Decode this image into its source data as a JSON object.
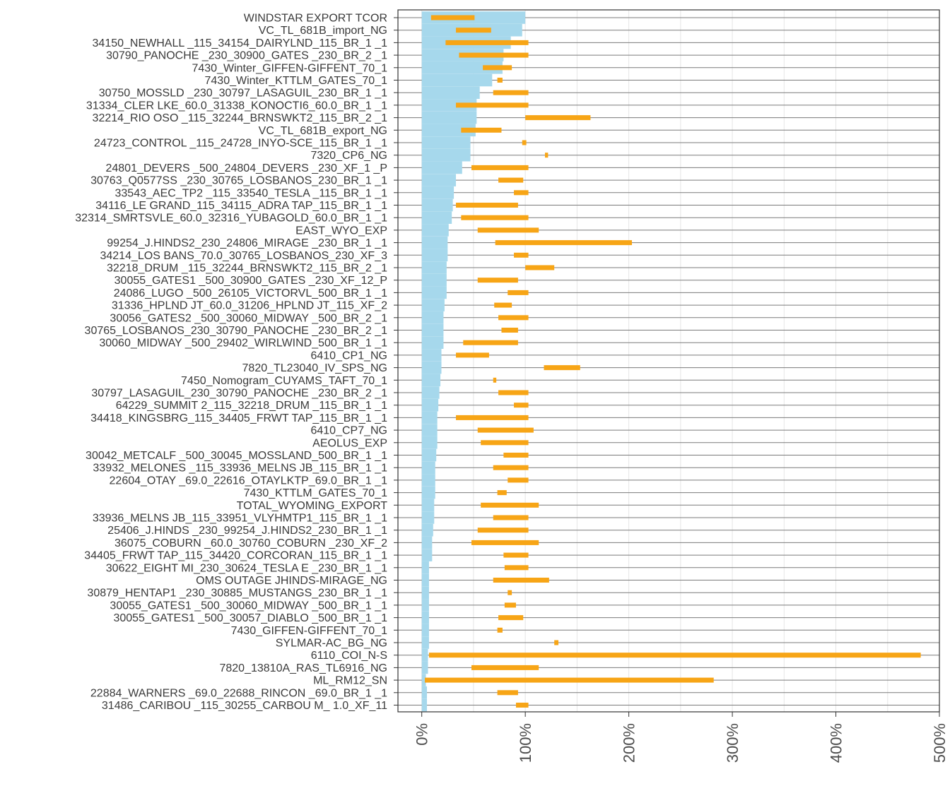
{
  "chart_data": {
    "type": "bar",
    "title": "",
    "xlabel": "",
    "ylabel": "",
    "xlim": [
      -0.23,
      5.0
    ],
    "x_ticks": [
      0,
      1,
      2,
      3,
      4,
      5
    ],
    "x_tick_labels": [
      "0%",
      "100%",
      "200%",
      "300%",
      "400%",
      "500%"
    ],
    "colors": {
      "bar": "#a6d8ec",
      "range": "#f7a516",
      "axis": "#333333",
      "grid": "#e6e6e6",
      "row_line": "#7a7a7a"
    },
    "categories": [
      "WINDSTAR EXPORT TCOR",
      "VC_TL_681B_import_NG",
      "34150_NEWHALL _115_34154_DAIRYLND_115_BR_1 _1",
      "30790_PANOCHE _230_30900_GATES    _230_BR_2 _1",
      "7430_Winter_GIFFEN-GIFFENT_70_1",
      "7430_Winter_KTTLM_GATES_70_1",
      "30750_MOSSLD  _230_30797_LASAGUIL_230_BR_1 _1",
      "31334_CLER LKE_60.0_31338_KONOCTI6_60.0_BR_1 _1",
      "32214_RIO OSO _115_32244_BRNSWKT2_115_BR_2 _1",
      "VC_TL_681B_export_NG",
      "24723_CONTROL _115_24728_INYO-SCE_115_BR_1 _1",
      "7320_CP6_NG",
      "24801_DEVERS  _500_24804_DEVERS  _230_XF_1 _P",
      "30763_Q0577SS _230_30765_LOSBANOS_230_BR_1 _1",
      "33543_AEC_TP2 _115_33540_TESLA    _115_BR_1 _1",
      "34116_LE GRAND_115_34115_ADRA TAP_115_BR_1 _1",
      "32314_SMRTSVLE_60.0_32316_YUBAGOLD_60.0_BR_1 _1",
      "EAST_WYO_EXP",
      "99254_J.HINDS2_230_24806_MIRAGE   _230_BR_1 _1",
      "34214_LOS BANS_70.0_30765_LOSBANOS_230_XF_3",
      "32218_DRUM     _115_32244_BRNSWKT2_115_BR_2 _1",
      "30055_GATES1  _500_30900_GATES    _230_XF_12_P",
      "24086_LUGO     _500_26105_VICTORVL_500_BR_1 _1",
      "31336_HPLND JT_60.0_31206_HPLND JT_115_XF_2",
      "30056_GATES2  _500_30060_MIDWAY  _500_BR_2 _1",
      "30765_LOSBANOS_230_30790_PANOCHE _230_BR_2 _1",
      "30060_MIDWAY  _500_29402_WIRLWIND_500_BR_1 _1",
      "6410_CP1_NG",
      "7820_TL23040_IV_SPS_NG",
      "7450_Nomogram_CUYAMS_TAFT_70_1",
      "30797_LASAGUIL_230_30790_PANOCHE _230_BR_2 _1",
      "64229_SUMMIT 2_115_32218_DRUM     _115_BR_1 _1",
      "34418_KINGSBRG_115_34405_FRWT TAP_115_BR_1 _1",
      "6410_CP7_NG",
      "AEOLUS_EXP",
      "30042_METCALF _500_30045_MOSSLAND_500_BR_1 _1",
      "33932_MELONES _115_33936_MELNS JB_115_BR_1 _1",
      "22604_OTAY     _69.0_22616_OTAYLKTP_69.0_BR_1 _1",
      "7430_KTTLM_GATES_70_1",
      "TOTAL_WYOMING_EXPORT",
      "33936_MELNS JB_115_33951_VLYHMTP1_115_BR_1 _1",
      "25406_J.HINDS _230_99254_J.HINDS2_230_BR_1 _1",
      "36075_COBURN  _60.0_30760_COBURN  _230_XF_2",
      "34405_FRWT TAP_115_34420_CORCORAN_115_BR_1 _1",
      "30622_EIGHT MI_230_30624_TESLA E _230_BR_1 _1",
      "OMS OUTAGE JHINDS-MIRAGE_NG",
      "30879_HENTAP1 _230_30885_MUSTANGS_230_BR_1 _1",
      "30055_GATES1  _500_30060_MIDWAY  _500_BR_1 _1",
      "30055_GATES1  _500_30057_DIABLO  _500_BR_1 _1",
      "7430_GIFFEN-GIFFENT_70_1",
      "SYLMAR-AC_BG_NG",
      "6110_COI_N-S",
      "7820_13810A_RAS_TL6916_NG",
      "ML_RM12_SN",
      "22884_WARNERS _69.0_22688_RINCON   _69.0_BR_1 _1",
      "31486_CARIBOU _115_30255_CARBOU M_ 1.0_XF_11"
    ],
    "bar_values": [
      1.0,
      0.97,
      0.86,
      0.79,
      0.78,
      0.68,
      0.56,
      0.53,
      0.53,
      0.52,
      0.47,
      0.47,
      0.39,
      0.33,
      0.31,
      0.3,
      0.29,
      0.26,
      0.25,
      0.25,
      0.24,
      0.24,
      0.24,
      0.22,
      0.21,
      0.21,
      0.21,
      0.19,
      0.19,
      0.18,
      0.17,
      0.16,
      0.15,
      0.15,
      0.15,
      0.14,
      0.13,
      0.13,
      0.13,
      0.12,
      0.12,
      0.11,
      0.1,
      0.1,
      0.07,
      0.07,
      0.07,
      0.07,
      0.07,
      0.07,
      0.07,
      0.06,
      0.06,
      0.04,
      0.05,
      0.05
    ],
    "range_low": [
      0.09,
      0.33,
      0.23,
      0.36,
      0.59,
      0.73,
      0.69,
      0.33,
      1.0,
      0.38,
      0.97,
      1.19,
      0.48,
      0.74,
      0.89,
      0.33,
      0.38,
      0.54,
      0.71,
      0.89,
      1.0,
      0.54,
      0.83,
      0.7,
      0.74,
      0.77,
      0.4,
      0.33,
      1.18,
      0.69,
      0.74,
      0.89,
      0.33,
      0.54,
      0.57,
      0.79,
      0.69,
      0.83,
      0.73,
      0.57,
      0.69,
      0.54,
      0.48,
      0.79,
      0.8,
      0.69,
      0.83,
      0.8,
      0.74,
      0.73,
      1.28,
      0.07,
      0.48,
      0.03,
      0.73,
      0.91
    ],
    "range_high": [
      0.51,
      0.67,
      1.03,
      1.03,
      0.87,
      0.78,
      1.03,
      1.03,
      1.63,
      0.77,
      1.01,
      1.22,
      1.03,
      0.98,
      1.03,
      0.93,
      1.03,
      1.13,
      2.03,
      1.03,
      1.28,
      0.93,
      1.03,
      0.87,
      1.03,
      0.93,
      0.93,
      0.65,
      1.53,
      0.72,
      1.03,
      1.03,
      1.03,
      1.08,
      1.03,
      1.03,
      1.03,
      1.03,
      0.82,
      1.13,
      1.03,
      1.03,
      1.13,
      1.03,
      1.03,
      1.23,
      0.87,
      0.91,
      0.98,
      0.78,
      1.32,
      4.82,
      1.13,
      2.82,
      0.93,
      1.03
    ]
  }
}
